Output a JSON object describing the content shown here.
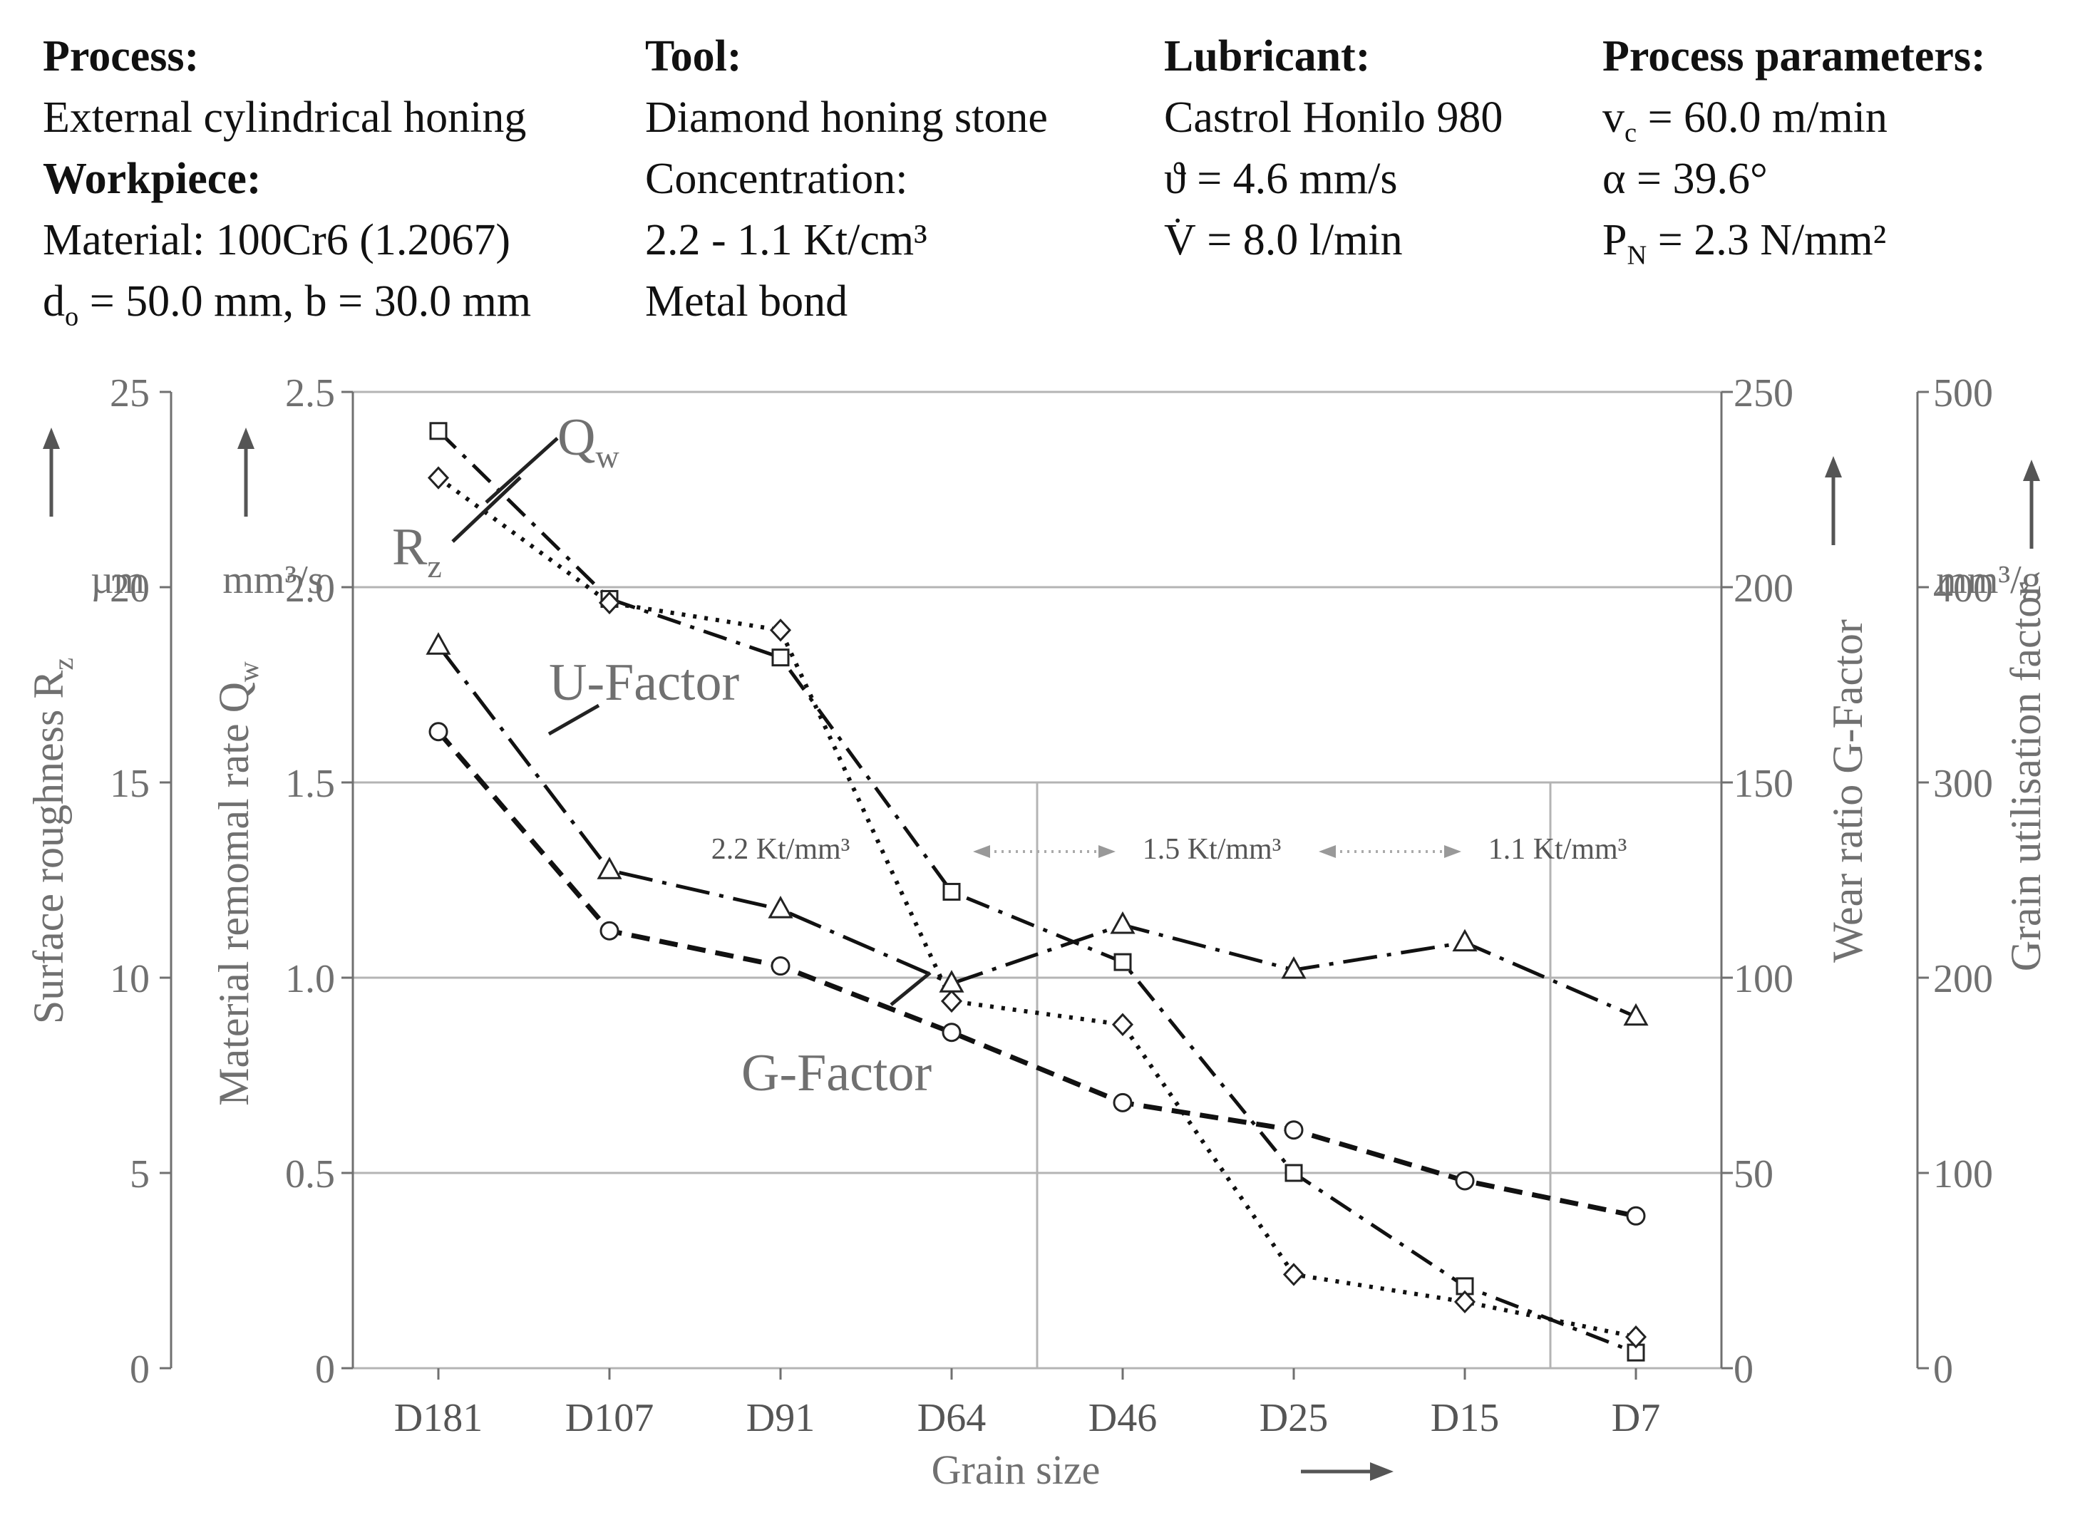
{
  "header": {
    "process": {
      "title": "Process:",
      "value": "External cylindrical honing"
    },
    "workpiece": {
      "title": "Workpiece:",
      "material": "Material: 100Cr6 (1.2067)",
      "dims_d": "d",
      "dims_sub": "o",
      "dims_rest": " = 50.0 mm, b = 30.0 mm"
    },
    "tool": {
      "title": "Tool:",
      "value": "Diamond honing stone",
      "conc_label": "Concentration:",
      "conc_value": "2.2 - 1.1 Kt/cm³",
      "bond": "Metal bond"
    },
    "lubricant": {
      "title": "Lubricant:",
      "value": "Castrol Honilo 980",
      "speed": "ϑ = 4.6 mm/s",
      "flow_pre": "V",
      "flow_rest": " = 8.0 l/min"
    },
    "params": {
      "title": "Process parameters:",
      "vc_pre": "v",
      "vc_sub": "c",
      "vc_rest": " = 60.0 m/min",
      "alpha": "α = 39.6°",
      "pn_pre": "P",
      "pn_sub": "N",
      "pn_rest": " = 2.3 N/mm²"
    }
  },
  "chart_data": {
    "type": "line",
    "xlabel": "Grain size",
    "categories": [
      "D181",
      "D107",
      "D91",
      "D64",
      "D46",
      "D25",
      "D15",
      "D7"
    ],
    "axes": {
      "rz": {
        "label_main": "Surface roughness R",
        "label_sub": "z",
        "unit": "µm",
        "ticks": [
          "0",
          "5",
          "10",
          "15",
          "20",
          "25"
        ],
        "range": [
          0,
          25
        ]
      },
      "qw": {
        "label_main": "Material remomal rate Q",
        "label_sub": "w",
        "unit": "mm³/s",
        "ticks": [
          "0",
          "0.5",
          "1.0",
          "1.5",
          "2.0",
          "2.5"
        ],
        "range": [
          0,
          2.5
        ]
      },
      "g": {
        "label": "Wear ratio G-Factor",
        "ticks": [
          "0",
          "50",
          "100",
          "150",
          "200",
          "250"
        ],
        "range": [
          0,
          250
        ]
      },
      "u": {
        "label": "Grain utilisation factor",
        "unit": "mm³/g",
        "ticks": [
          "0",
          "100",
          "200",
          "300",
          "400",
          "500"
        ],
        "range": [
          0,
          500
        ]
      }
    },
    "series": [
      {
        "name": "Qw",
        "axis": "qw",
        "marker": "square",
        "values": [
          2.4,
          1.97,
          1.82,
          1.22,
          1.04,
          0.5,
          0.21,
          0.04
        ]
      },
      {
        "name": "Rz",
        "axis": "rz",
        "marker": "diamond",
        "values": [
          22.8,
          19.6,
          18.9,
          9.4,
          8.8,
          2.4,
          1.7,
          0.8
        ]
      },
      {
        "name": "U-Factor",
        "axis": "u",
        "marker": "triangle",
        "values": [
          370,
          255,
          235,
          197,
          227,
          204,
          218,
          180
        ]
      },
      {
        "name": "G-Factor",
        "axis": "g",
        "marker": "circle",
        "values": [
          163,
          112,
          103,
          86,
          68,
          61,
          48,
          39
        ]
      }
    ],
    "annotations": {
      "qw_label": "Q",
      "qw_sub": "w",
      "rz_label": "R",
      "rz_sub": "z",
      "u_label": "U-Factor",
      "g_label": "G-Factor",
      "conc": [
        "2.2 Kt/mm³",
        "1.5 Kt/mm³",
        "1.1 Kt/mm³"
      ]
    }
  }
}
